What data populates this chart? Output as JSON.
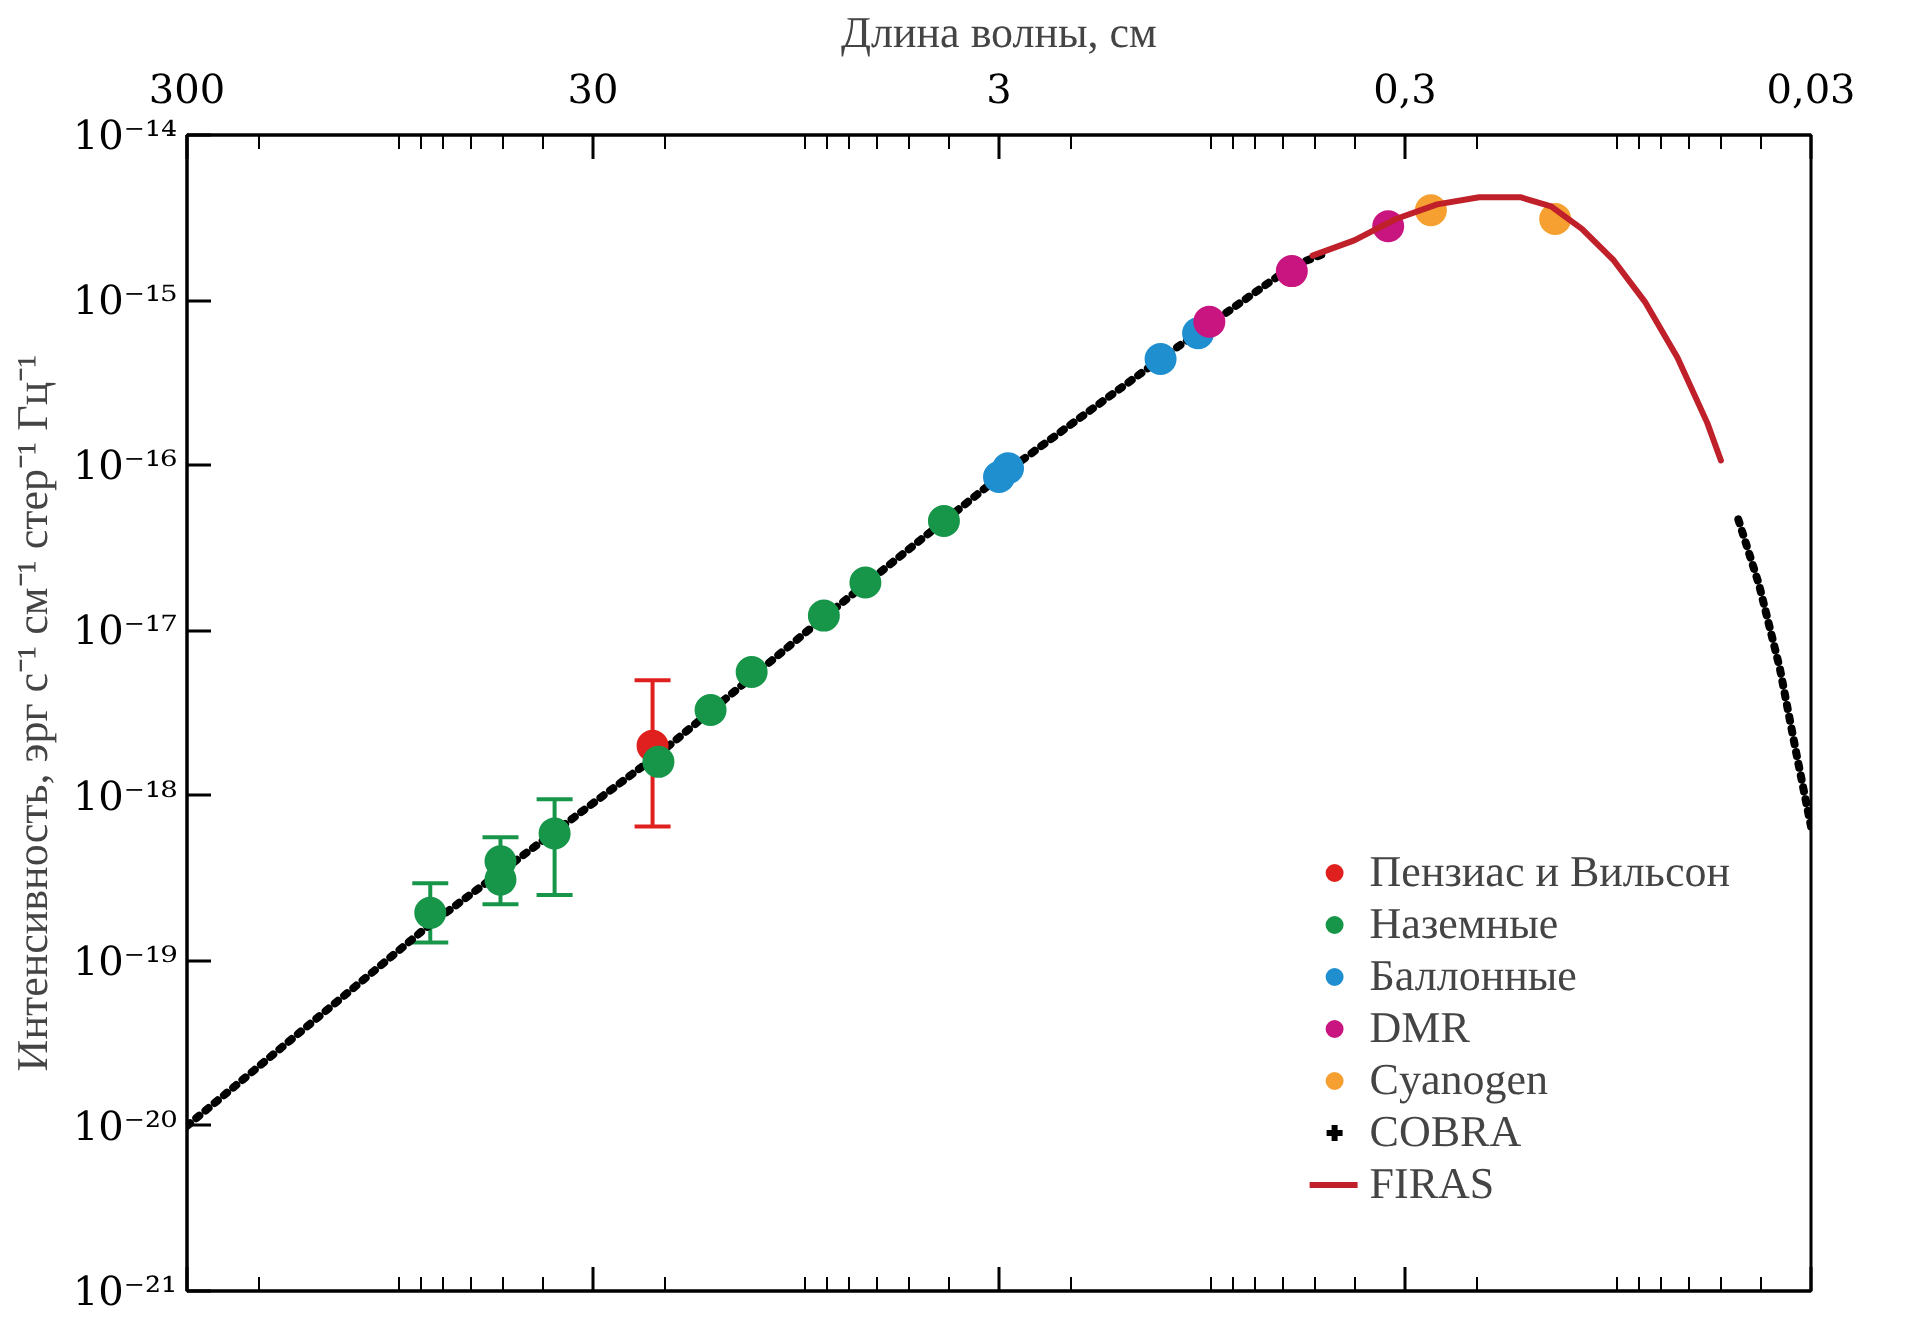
{
  "chart_data": {
    "type": "scatter",
    "xlabel": "Длина волны, см",
    "ylabel": "Интенсивность, эрг с⁻¹ см⁻¹ стер⁻¹ Гц⁻¹",
    "log": "xy",
    "xlim": [
      300,
      0.03
    ],
    "xticks": [
      300,
      30,
      3,
      {
        "value": 0.3,
        "label": "0,3"
      },
      {
        "value": 0.03,
        "label": "0,03"
      }
    ],
    "ylim": [
      1e-21,
      1e-14
    ],
    "yticks": [
      {
        "value": 1e-21,
        "label": "10⁻²¹"
      },
      {
        "value": 1e-20,
        "label": "10⁻²⁰"
      },
      {
        "value": 1e-19,
        "label": "10⁻¹⁹"
      },
      {
        "value": 1e-18,
        "label": "10⁻¹⁸"
      },
      {
        "value": 1e-17,
        "label": "10⁻¹⁷"
      },
      {
        "value": 1e-16,
        "label": "10⁻¹⁶"
      },
      {
        "value": 1e-15,
        "label": "10⁻¹⁵"
      },
      {
        "value": 1e-14,
        "label": "10⁻¹⁴"
      }
    ],
    "grid": false,
    "legend": "bottom right",
    "series": [
      {
        "type": "line",
        "line_style": "dotted",
        "color": "#000000",
        "x": [
          300,
          75.5,
          20.9,
          8.1,
          3.0,
          1.2,
          0.57,
          0.478,
          0.05,
          0.0453,
          0.0403,
          0.0358,
          0.0326,
          0.03
        ],
        "values": [
          1e-20,
          1.66e-19,
          1.74e-18,
          1.2e-17,
          8.5e-17,
          4.4e-16,
          1.6e-15,
          1.9e-15,
          null,
          4.7e-17,
          1.9e-17,
          5.9e-18,
          1.8e-18,
          6.5e-19
        ]
      },
      {
        "name": "Пензиас и Вильсон",
        "color": "#e0201e",
        "marker": "circle",
        "x": [
          21.4
        ],
        "values": [
          2e-18
        ],
        "errors": [
          [
            6.5e-19,
            5e-18
          ]
        ]
      },
      {
        "name": "Наземные",
        "color": "#17964a",
        "marker": "circle",
        "x": [
          75.5,
          50.7,
          50.7,
          37.3,
          20.7,
          15.4,
          12.2,
          8.1,
          6.4,
          4.1
        ],
        "values": [
          1.95e-19,
          4e-19,
          3.1e-19,
          5.9e-19,
          1.6e-18,
          3.3e-18,
          5.6e-18,
          1.23e-17,
          1.95e-17,
          4.6e-17
        ],
        "errors": [
          [
            1.29e-19,
            2.95e-19
          ],
          [
            2.2e-19,
            5.6e-19
          ],
          null,
          [
            2.5e-19,
            9.5e-19
          ],
          null,
          null,
          null,
          null,
          null,
          null
        ]
      },
      {
        "name": "Баллонные",
        "color": "#1f8fd0",
        "marker": "circle",
        "x": [
          3.0,
          2.85,
          1.2,
          0.97
        ],
        "values": [
          8.5e-17,
          9.6e-17,
          4.4e-16,
          6.3e-16
        ]
      },
      {
        "name": "DMR",
        "color": "#c8157f",
        "marker": "circle",
        "x": [
          0.91,
          0.57,
          0.33
        ],
        "values": [
          7.4e-16,
          1.5e-15,
          2.8e-15
        ]
      },
      {
        "name": "Cyanogen",
        "color": "#f5a030",
        "marker": "circle",
        "x": [
          0.259,
          0.128
        ],
        "values": [
          3.5e-15,
          3.1e-15
        ]
      },
      {
        "name": "COBRA",
        "color": "#000000",
        "marker": "cross"
      },
      {
        "type": "line",
        "name": "FIRAS",
        "color": "#c0202a",
        "line_style": "solid",
        "x": [
          0.507,
          0.4,
          0.316,
          0.25,
          0.197,
          0.156,
          0.131,
          0.11,
          0.092,
          0.077,
          0.064,
          0.054,
          0.05
        ],
        "values": [
          1.86e-15,
          2.3e-15,
          3.1e-15,
          3.8e-15,
          4.2e-15,
          4.2e-15,
          3.7e-15,
          2.7e-15,
          1.75e-15,
          9.8e-16,
          4.5e-16,
          1.8e-16,
          1.07e-16
        ]
      }
    ]
  }
}
